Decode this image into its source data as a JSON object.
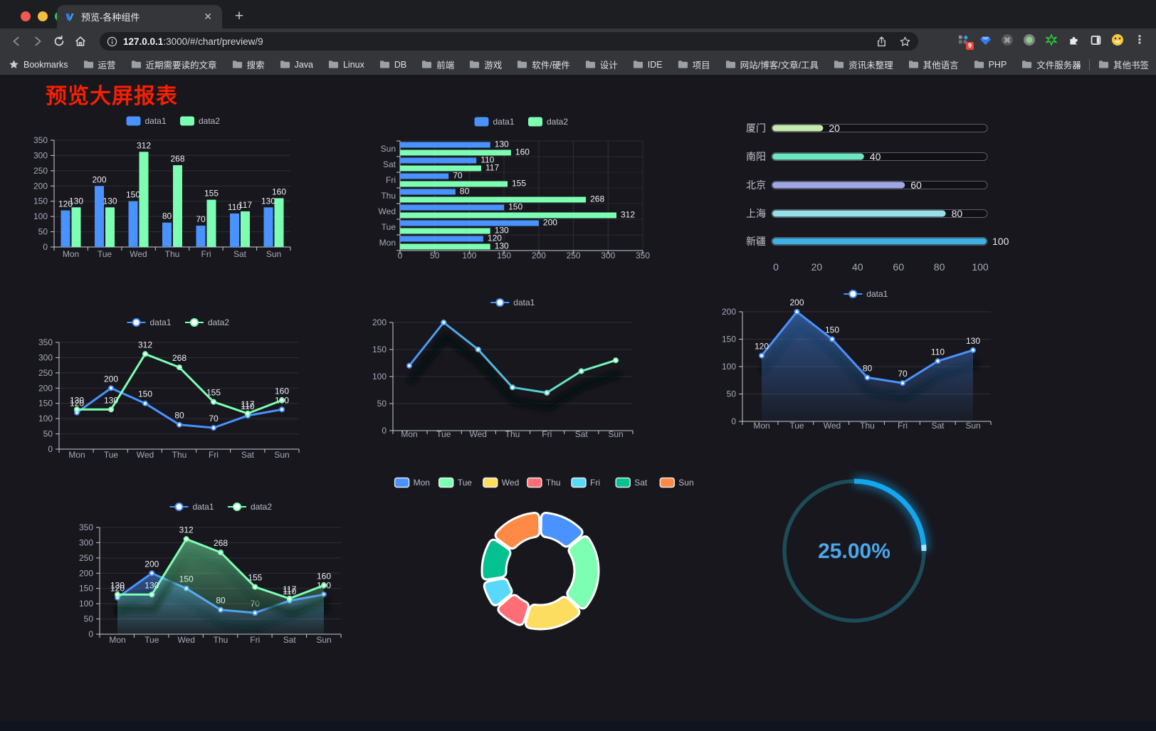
{
  "browser": {
    "tab_title": "预览-各种组件",
    "url_host": "127.0.0.1",
    "url_rest": ":3000/#/chart/preview/9",
    "new_tab": "+",
    "close_tab": "✕",
    "bookmarks_label": "Bookmarks",
    "bookmarks": [
      "运营",
      "近期需要读的文章",
      "搜索",
      "Java",
      "Linux",
      "DB",
      "前端",
      "游戏",
      "软件/硬件",
      "设计",
      "IDE",
      "项目",
      "网站/博客/文章/工具",
      "资讯未整理",
      "其他语言",
      "PHP",
      "文件服务器"
    ],
    "overflow_chevron": "»",
    "other_bookmarks": "其他书签",
    "extension_badge": "9",
    "menu_dots": "⋮"
  },
  "page": {
    "title": "预览大屏报表",
    "title_color": "#f81f00"
  },
  "palette": {
    "blue": "#4992ff",
    "green": "#7cffb2",
    "axis_text": "#a6a9bb",
    "axis_line": "#c9ccd6",
    "legend_text": "#b9bcc8",
    "value_text": "#eef0f4"
  },
  "chart_data": [
    {
      "id": "bar1",
      "type": "bar",
      "legend_pos": "top",
      "categories": [
        "Mon",
        "Tue",
        "Wed",
        "Thu",
        "Fri",
        "Sat",
        "Sun"
      ],
      "series": [
        {
          "name": "data1",
          "color": "#4992ff",
          "values": [
            120,
            200,
            150,
            80,
            70,
            110,
            130
          ]
        },
        {
          "name": "data2",
          "color": "#7cffb2",
          "values": [
            130,
            130,
            312,
            268,
            155,
            117,
            160
          ]
        }
      ],
      "ylim": [
        0,
        350
      ],
      "ystep": 50,
      "labels": true
    },
    {
      "id": "bar2",
      "type": "barh",
      "legend_pos": "top",
      "categories": [
        "Mon",
        "Tue",
        "Wed",
        "Thu",
        "Fri",
        "Sat",
        "Sun"
      ],
      "series": [
        {
          "name": "data1",
          "color": "#4992ff",
          "values": [
            120,
            200,
            150,
            80,
            70,
            110,
            130
          ]
        },
        {
          "name": "data2",
          "color": "#7cffb2",
          "values": [
            130,
            130,
            312,
            268,
            155,
            117,
            160
          ]
        }
      ],
      "xlim": [
        0,
        350
      ],
      "xstep": 50,
      "labels": true
    },
    {
      "id": "progress",
      "type": "progress",
      "max": 100,
      "ticks": [
        0,
        20,
        40,
        60,
        80,
        100
      ],
      "items": [
        {
          "label": "厦门",
          "value": 20,
          "color": "#c4ebad"
        },
        {
          "label": "南阳",
          "value": 40,
          "color": "#6be6c1"
        },
        {
          "label": "北京",
          "value": 60,
          "color": "#a0a7e6"
        },
        {
          "label": "上海",
          "value": 80,
          "color": "#96dee8"
        },
        {
          "label": "新疆",
          "value": 100,
          "color": "#3fb1e3"
        }
      ]
    },
    {
      "id": "line1",
      "type": "line",
      "categories": [
        "Mon",
        "Tue",
        "Wed",
        "Thu",
        "Fri",
        "Sat",
        "Sun"
      ],
      "series": [
        {
          "name": "data1",
          "color": "#4992ff",
          "values": [
            120,
            200,
            150,
            80,
            70,
            110,
            130
          ]
        },
        {
          "name": "data2",
          "color": "#7cffb2",
          "values": [
            130,
            130,
            312,
            268,
            155,
            117,
            160
          ]
        }
      ],
      "ylim": [
        0,
        350
      ],
      "ystep": 50,
      "labels": true,
      "shadow": false
    },
    {
      "id": "line2",
      "type": "line",
      "categories": [
        "Mon",
        "Tue",
        "Wed",
        "Thu",
        "Fri",
        "Sat",
        "Sun"
      ],
      "series": [
        {
          "name": "data1",
          "color": "#4992ff",
          "color2": "#7cffb2",
          "gradient": true,
          "values": [
            120,
            200,
            150,
            80,
            70,
            110,
            130
          ]
        }
      ],
      "ylim": [
        0,
        200
      ],
      "ystep": 50,
      "labels": false,
      "shadow": true
    },
    {
      "id": "line3",
      "type": "line",
      "categories": [
        "Mon",
        "Tue",
        "Wed",
        "Thu",
        "Fri",
        "Sat",
        "Sun"
      ],
      "series": [
        {
          "name": "data1",
          "color": "#4992ff",
          "area": true,
          "values": [
            120,
            200,
            150,
            80,
            70,
            110,
            130
          ]
        }
      ],
      "ylim": [
        0,
        200
      ],
      "ystep": 50,
      "labels": true,
      "shadow": true
    },
    {
      "id": "line4",
      "type": "line",
      "categories": [
        "Mon",
        "Tue",
        "Wed",
        "Thu",
        "Fri",
        "Sat",
        "Sun"
      ],
      "series": [
        {
          "name": "data1",
          "color": "#4992ff",
          "area": true,
          "values": [
            120,
            200,
            150,
            80,
            70,
            110,
            130
          ]
        },
        {
          "name": "data2",
          "color": "#7cffb2",
          "area": true,
          "values": [
            130,
            130,
            312,
            268,
            155,
            117,
            160
          ]
        }
      ],
      "ylim": [
        0,
        350
      ],
      "ystep": 50,
      "labels": true,
      "shadow": true
    },
    {
      "id": "pie",
      "type": "donut",
      "slices": [
        {
          "label": "Mon",
          "value": 120,
          "color": "#4992ff"
        },
        {
          "label": "Tue",
          "value": 200,
          "color": "#7cffb2"
        },
        {
          "label": "Wed",
          "value": 150,
          "color": "#fddd60"
        },
        {
          "label": "Thu",
          "value": 80,
          "color": "#ff6e76"
        },
        {
          "label": "Fri",
          "value": 70,
          "color": "#58d9f9"
        },
        {
          "label": "Sat",
          "value": 110,
          "color": "#05c091"
        },
        {
          "label": "Sun",
          "value": 130,
          "color": "#ff8a45"
        }
      ]
    },
    {
      "id": "gauge",
      "type": "gauge",
      "value": 25,
      "display": "25.00%",
      "color": "#14a6ee",
      "track": "#1d4b57",
      "text_color": "#4aa7e9"
    }
  ]
}
